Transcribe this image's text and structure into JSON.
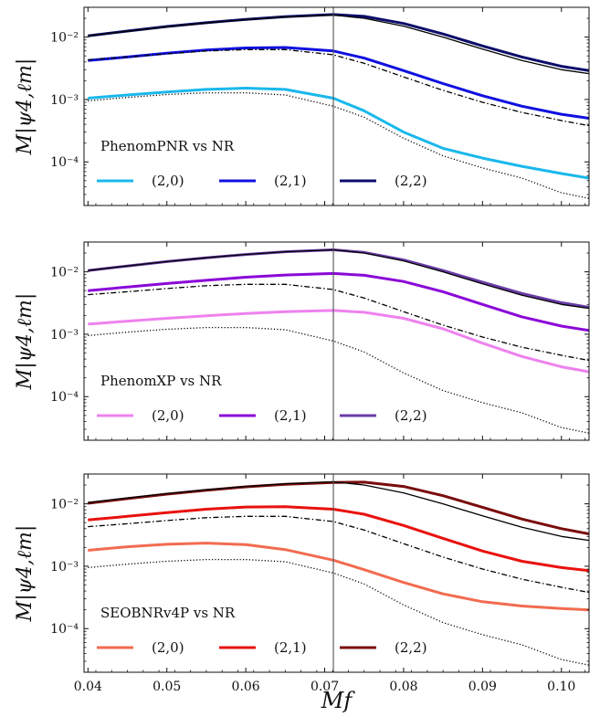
{
  "chart_data": [
    {
      "type": "line",
      "legend_title": "PhenomPNR vs NR",
      "legend_placement": "lower-left",
      "ylabel": "M|ψ4,ℓm|",
      "xlabel": "",
      "xlim": [
        0.0395,
        0.1035
      ],
      "ylim": [
        2e-05,
        0.03
      ],
      "y_scale": "log",
      "vline_x": 0.0711,
      "x": [
        0.04,
        0.045,
        0.05,
        0.055,
        0.06,
        0.065,
        0.0711,
        0.075,
        0.08,
        0.085,
        0.09,
        0.095,
        0.1,
        0.1035
      ],
      "series": [
        {
          "name": "(2,0)",
          "color": "#1ab8ec",
          "width": 3,
          "dash": "solid",
          "values": [
            0.00105,
            0.00118,
            0.00132,
            0.00145,
            0.00152,
            0.00145,
            0.00105,
            0.00066,
            0.0003,
            0.000165,
            0.000115,
            8.5e-05,
            6.5e-05,
            5.5e-05
          ]
        },
        {
          "name": "(2,1)",
          "color": "#1010e0",
          "width": 3,
          "dash": "solid",
          "values": [
            0.0042,
            0.0048,
            0.0055,
            0.0062,
            0.0067,
            0.0068,
            0.006,
            0.0046,
            0.0029,
            0.0018,
            0.00115,
            0.00078,
            0.00058,
            0.0005
          ]
        },
        {
          "name": "(2,2)",
          "color": "#0d0d6b",
          "width": 3,
          "dash": "solid",
          "values": [
            0.0105,
            0.0125,
            0.0148,
            0.017,
            0.0192,
            0.0212,
            0.023,
            0.0215,
            0.0165,
            0.0112,
            0.0072,
            0.0048,
            0.0034,
            0.0029
          ]
        },
        {
          "name": "NR (2,0)",
          "color": "#000000",
          "width": 1.3,
          "dash": "dotted",
          "values": [
            0.00095,
            0.00108,
            0.0012,
            0.00128,
            0.00128,
            0.00118,
            0.00078,
            0.00052,
            0.00024,
            0.000125,
            8e-05,
            5.5e-05,
            3.2e-05,
            2.6e-05
          ]
        },
        {
          "name": "NR (2,1)",
          "color": "#000000",
          "width": 1.3,
          "dash": "dashdot",
          "values": [
            0.0043,
            0.0048,
            0.0054,
            0.006,
            0.0063,
            0.0063,
            0.0052,
            0.0038,
            0.0023,
            0.0014,
            0.0009,
            0.00062,
            0.00046,
            0.00038
          ]
        },
        {
          "name": "NR (2,2)",
          "color": "#000000",
          "width": 1.3,
          "dash": "solid",
          "values": [
            0.0105,
            0.0124,
            0.0146,
            0.0168,
            0.019,
            0.021,
            0.0225,
            0.02,
            0.015,
            0.01,
            0.0064,
            0.0042,
            0.003,
            0.0026
          ]
        }
      ],
      "legend": [
        "(2,0)",
        "(2,1)",
        "(2,2)"
      ]
    },
    {
      "type": "line",
      "legend_title": "PhenomXP vs NR",
      "legend_placement": "lower-left",
      "ylabel": "M|ψ4,ℓm|",
      "xlabel": "",
      "xlim": [
        0.0395,
        0.1035
      ],
      "ylim": [
        2e-05,
        0.03
      ],
      "y_scale": "log",
      "vline_x": 0.0711,
      "x": [
        0.04,
        0.045,
        0.05,
        0.055,
        0.06,
        0.065,
        0.0711,
        0.075,
        0.08,
        0.085,
        0.09,
        0.095,
        0.1,
        0.1035
      ],
      "series": [
        {
          "name": "(2,0)",
          "color": "#ee82ee",
          "width": 3,
          "dash": "solid",
          "values": [
            0.00145,
            0.00162,
            0.0018,
            0.00198,
            0.00215,
            0.0023,
            0.0024,
            0.00225,
            0.0018,
            0.00122,
            0.00072,
            0.00044,
            0.0003,
            0.00025
          ]
        },
        {
          "name": "(2,1)",
          "color": "#8b08d8",
          "width": 3,
          "dash": "solid",
          "values": [
            0.005,
            0.0057,
            0.0065,
            0.0073,
            0.0082,
            0.0089,
            0.0094,
            0.0088,
            0.007,
            0.0048,
            0.003,
            0.0019,
            0.00135,
            0.00115
          ]
        },
        {
          "name": "(2,2)",
          "color": "#6a3ca8",
          "width": 3,
          "dash": "solid",
          "values": [
            0.0105,
            0.0124,
            0.0146,
            0.0168,
            0.019,
            0.021,
            0.0225,
            0.0205,
            0.0155,
            0.0105,
            0.0068,
            0.0045,
            0.0032,
            0.0027
          ]
        },
        {
          "name": "NR (2,0)",
          "color": "#000000",
          "width": 1.3,
          "dash": "dotted",
          "values": [
            0.00095,
            0.00108,
            0.0012,
            0.00128,
            0.00128,
            0.00118,
            0.00078,
            0.00052,
            0.00024,
            0.000125,
            8e-05,
            5.5e-05,
            3.2e-05,
            2.6e-05
          ]
        },
        {
          "name": "NR (2,1)",
          "color": "#000000",
          "width": 1.3,
          "dash": "dashdot",
          "values": [
            0.0043,
            0.0048,
            0.0054,
            0.006,
            0.0063,
            0.0063,
            0.0052,
            0.0038,
            0.0023,
            0.0014,
            0.0009,
            0.00062,
            0.00046,
            0.00038
          ]
        },
        {
          "name": "NR (2,2)",
          "color": "#000000",
          "width": 1.3,
          "dash": "solid",
          "values": [
            0.0105,
            0.0124,
            0.0146,
            0.0168,
            0.019,
            0.021,
            0.0225,
            0.02,
            0.015,
            0.01,
            0.0064,
            0.0042,
            0.003,
            0.0026
          ]
        }
      ],
      "legend": [
        "(2,0)",
        "(2,1)",
        "(2,2)"
      ]
    },
    {
      "type": "line",
      "legend_title": "SEOBNRv4P vs NR",
      "legend_placement": "lower-left",
      "ylabel": "M|ψ4,ℓm|",
      "xlabel": "Mf",
      "xlim": [
        0.0395,
        0.1035
      ],
      "ylim": [
        2e-05,
        0.03
      ],
      "y_scale": "log",
      "vline_x": 0.0711,
      "x": [
        0.04,
        0.045,
        0.05,
        0.055,
        0.06,
        0.065,
        0.0711,
        0.075,
        0.08,
        0.085,
        0.09,
        0.095,
        0.1,
        0.1035
      ],
      "series": [
        {
          "name": "(2,0)",
          "color": "#f26b50",
          "width": 3,
          "dash": "solid",
          "values": [
            0.0018,
            0.00205,
            0.00225,
            0.00235,
            0.00222,
            0.00185,
            0.00125,
            0.00088,
            0.00055,
            0.00036,
            0.00027,
            0.00023,
            0.00021,
            0.0002
          ]
        },
        {
          "name": "(2,1)",
          "color": "#e8120e",
          "width": 3,
          "dash": "solid",
          "values": [
            0.0055,
            0.0063,
            0.0072,
            0.0082,
            0.0089,
            0.009,
            0.0082,
            0.0068,
            0.0045,
            0.0028,
            0.00175,
            0.0012,
            0.00095,
            0.00085
          ]
        },
        {
          "name": "(2,2)",
          "color": "#7a0c0c",
          "width": 3,
          "dash": "solid",
          "values": [
            0.0102,
            0.0121,
            0.0143,
            0.0165,
            0.0187,
            0.0206,
            0.022,
            0.0222,
            0.019,
            0.0135,
            0.0088,
            0.0057,
            0.004,
            0.0033
          ]
        },
        {
          "name": "NR (2,0)",
          "color": "#000000",
          "width": 1.3,
          "dash": "dotted",
          "values": [
            0.00095,
            0.00108,
            0.0012,
            0.00128,
            0.00128,
            0.00118,
            0.00078,
            0.00052,
            0.00024,
            0.000125,
            8e-05,
            5.5e-05,
            3.2e-05,
            2.6e-05
          ]
        },
        {
          "name": "NR (2,1)",
          "color": "#000000",
          "width": 1.3,
          "dash": "dashdot",
          "values": [
            0.0043,
            0.0048,
            0.0054,
            0.006,
            0.0063,
            0.0063,
            0.0052,
            0.0038,
            0.0023,
            0.0014,
            0.0009,
            0.00062,
            0.00046,
            0.00038
          ]
        },
        {
          "name": "NR (2,2)",
          "color": "#000000",
          "width": 1.3,
          "dash": "solid",
          "values": [
            0.0105,
            0.0124,
            0.0146,
            0.0168,
            0.019,
            0.021,
            0.0225,
            0.02,
            0.015,
            0.01,
            0.0064,
            0.0042,
            0.003,
            0.0026
          ]
        }
      ],
      "legend": [
        "(2,0)",
        "(2,1)",
        "(2,2)"
      ]
    }
  ],
  "x_tick_labels": [
    "0.04",
    "0.05",
    "0.06",
    "0.07",
    "0.08",
    "0.09",
    "0.10"
  ],
  "y_tick_labels": [
    "10⁻⁴",
    "10⁻³",
    "10⁻²"
  ],
  "grid": false
}
